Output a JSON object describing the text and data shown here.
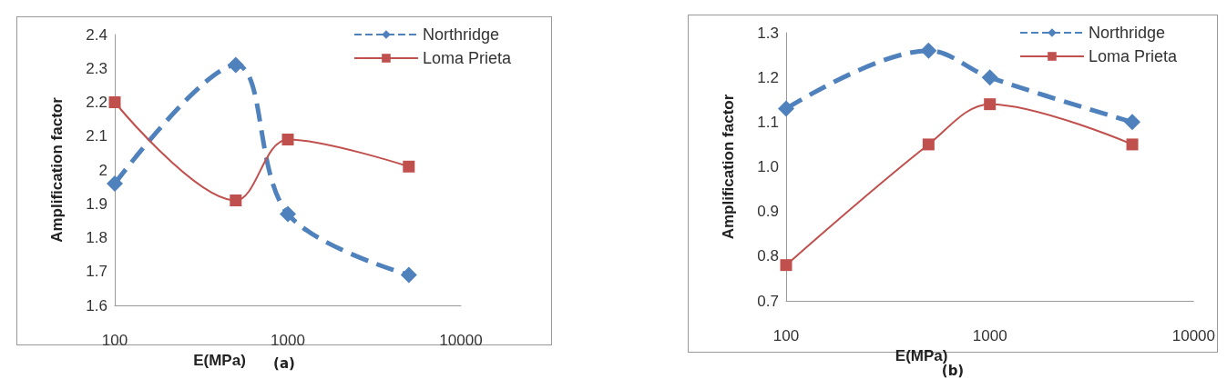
{
  "chart_data": [
    {
      "type": "line",
      "xlabel": "E(MPa)",
      "ylabel": "Amplification factor",
      "annotations": [
        "(a)"
      ],
      "x": [
        100,
        500,
        1000,
        5000
      ],
      "log": "x",
      "xlim": [
        100,
        10000
      ],
      "xticks": [
        100,
        1000,
        10000
      ],
      "ylim": [
        1.6,
        2.4
      ],
      "yticks": [
        1.6,
        1.7,
        1.8,
        1.9,
        2,
        2.1,
        2.2,
        2.3,
        2.4
      ],
      "grid": false,
      "legend": "top right",
      "series": [
        {
          "name": "Northridge",
          "color": "#4f81bd",
          "marker": "diamond",
          "line_style": "dashed",
          "values": [
            1.96,
            2.31,
            1.87,
            1.69
          ]
        },
        {
          "name": "Loma Prieta",
          "color": "#c0504d",
          "marker": "square",
          "line_style": "solid",
          "values": [
            2.2,
            1.91,
            2.09,
            2.01
          ]
        }
      ]
    },
    {
      "type": "line",
      "xlabel": "E(MPa)",
      "ylabel": "Amplification factor",
      "annotations": [
        "(b)"
      ],
      "x": [
        100,
        500,
        1000,
        5000
      ],
      "log": "x",
      "xlim": [
        100,
        10000
      ],
      "xticks": [
        100,
        1000,
        10000
      ],
      "ylim": [
        0.7,
        1.3
      ],
      "yticks": [
        0.7,
        0.8,
        0.9,
        {
          "value": 1,
          "label": "1.0"
        },
        1.1,
        1.2,
        1.3
      ],
      "grid": false,
      "legend": "top right",
      "series": [
        {
          "name": "Northridge",
          "color": "#4f81bd",
          "marker": "diamond",
          "line_style": "dashed",
          "values": [
            1.13,
            1.26,
            1.2,
            1.1
          ]
        },
        {
          "name": "Loma Prieta",
          "color": "#c0504d",
          "marker": "square",
          "line_style": "solid",
          "values": [
            0.78,
            1.05,
            1.14,
            1.05
          ]
        }
      ]
    }
  ]
}
